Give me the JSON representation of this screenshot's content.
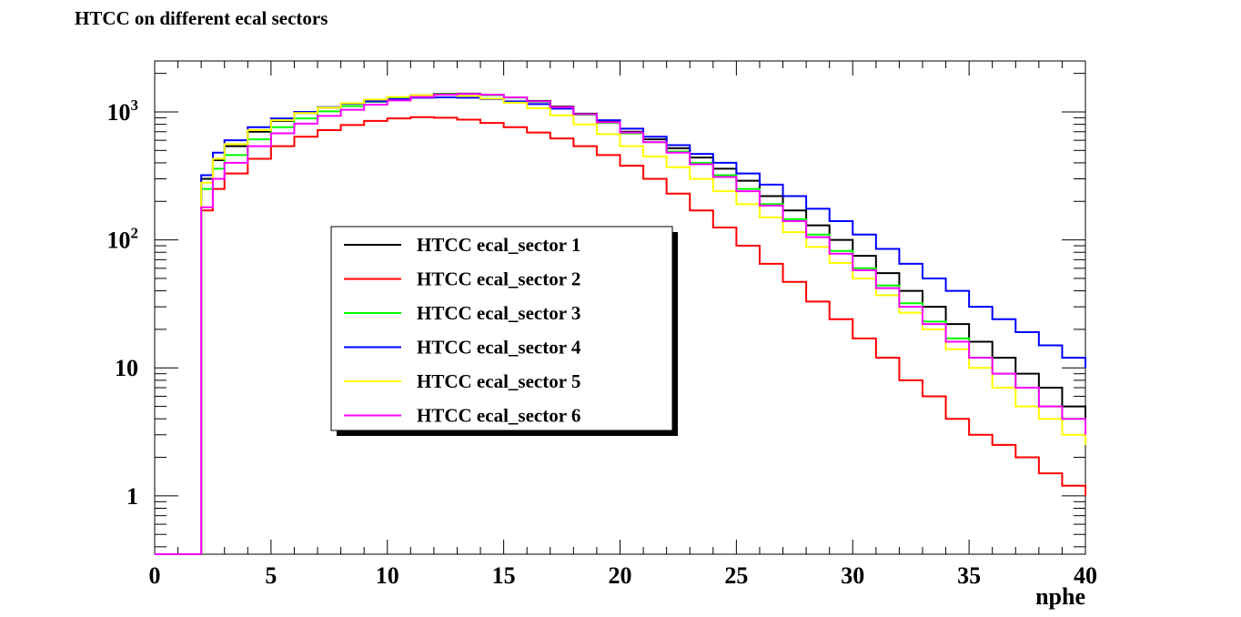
{
  "chart_data": {
    "type": "line",
    "title": "HTCC on different ecal sectors",
    "xlabel": "nphe",
    "ylabel": "",
    "xlim": [
      0,
      40
    ],
    "ylim": [
      0.35,
      2500
    ],
    "yscale": "log",
    "x_ticks": [
      "0",
      "5",
      "10",
      "15",
      "20",
      "25",
      "30",
      "35",
      "40"
    ],
    "y_ticks": [
      {
        "value": 1,
        "label": "1"
      },
      {
        "value": 10,
        "label": "10"
      },
      {
        "value": 100,
        "label": "10",
        "exp": "2"
      },
      {
        "value": 1000,
        "label": "10",
        "exp": "3"
      }
    ],
    "grid": false,
    "legend_position": "center-left",
    "x": [
      2,
      2.5,
      3,
      4,
      5,
      6,
      7,
      8,
      9,
      10,
      11,
      12,
      13,
      14,
      15,
      16,
      17,
      18,
      19,
      20,
      21,
      22,
      23,
      24,
      25,
      26,
      27,
      28,
      29,
      30,
      31,
      32,
      33,
      34,
      35,
      36,
      37,
      38,
      39,
      40
    ],
    "series": [
      {
        "name": "HTCC ecal_sector 1",
        "color": "#000000",
        "values": [
          300,
          420,
          540,
          700,
          850,
          980,
          1080,
          1160,
          1240,
          1300,
          1350,
          1380,
          1390,
          1360,
          1300,
          1220,
          1100,
          970,
          850,
          700,
          610,
          520,
          440,
          360,
          290,
          220,
          170,
          130,
          100,
          75,
          55,
          40,
          30,
          22,
          16,
          12,
          9,
          7,
          5,
          4
        ]
      },
      {
        "name": "HTCC ecal_sector 2",
        "color": "#ff0000",
        "values": [
          170,
          250,
          330,
          430,
          540,
          640,
          720,
          790,
          850,
          890,
          910,
          900,
          870,
          820,
          760,
          690,
          620,
          540,
          460,
          380,
          300,
          230,
          170,
          125,
          90,
          65,
          47,
          33,
          24,
          17,
          12,
          8,
          6,
          4,
          3,
          2.5,
          2,
          1.5,
          1.2,
          1
        ]
      },
      {
        "name": "HTCC ecal_sector 3",
        "color": "#00ff00",
        "values": [
          250,
          360,
          460,
          610,
          760,
          890,
          1010,
          1110,
          1200,
          1270,
          1330,
          1370,
          1380,
          1350,
          1290,
          1200,
          1080,
          950,
          820,
          680,
          580,
          490,
          400,
          320,
          250,
          190,
          145,
          110,
          82,
          60,
          44,
          32,
          23,
          17,
          12,
          9,
          7,
          5,
          4,
          3
        ]
      },
      {
        "name": "HTCC ecal_sector 4",
        "color": "#0000ff",
        "values": [
          320,
          480,
          600,
          760,
          890,
          1000,
          1090,
          1160,
          1210,
          1260,
          1290,
          1300,
          1290,
          1260,
          1210,
          1150,
          1060,
          960,
          860,
          740,
          640,
          550,
          470,
          400,
          330,
          270,
          220,
          175,
          140,
          110,
          85,
          65,
          50,
          40,
          30,
          24,
          19,
          15,
          12,
          10
        ]
      },
      {
        "name": "HTCC ecal_sector 5",
        "color": "#ffff00",
        "values": [
          280,
          430,
          560,
          720,
          860,
          980,
          1080,
          1170,
          1250,
          1310,
          1350,
          1360,
          1330,
          1270,
          1180,
          1070,
          940,
          800,
          670,
          540,
          450,
          370,
          300,
          240,
          190,
          150,
          115,
          88,
          66,
          50,
          37,
          27,
          20,
          14,
          10,
          7,
          5,
          4,
          3,
          2.5
        ]
      },
      {
        "name": "HTCC ecal_sector 6",
        "color": "#ff00ff",
        "values": [
          180,
          300,
          400,
          540,
          680,
          810,
          930,
          1040,
          1140,
          1230,
          1310,
          1360,
          1380,
          1360,
          1300,
          1210,
          1090,
          960,
          830,
          690,
          580,
          480,
          390,
          310,
          240,
          185,
          140,
          105,
          78,
          58,
          42,
          30,
          22,
          16,
          12,
          9,
          7,
          5,
          4,
          3
        ]
      }
    ]
  }
}
